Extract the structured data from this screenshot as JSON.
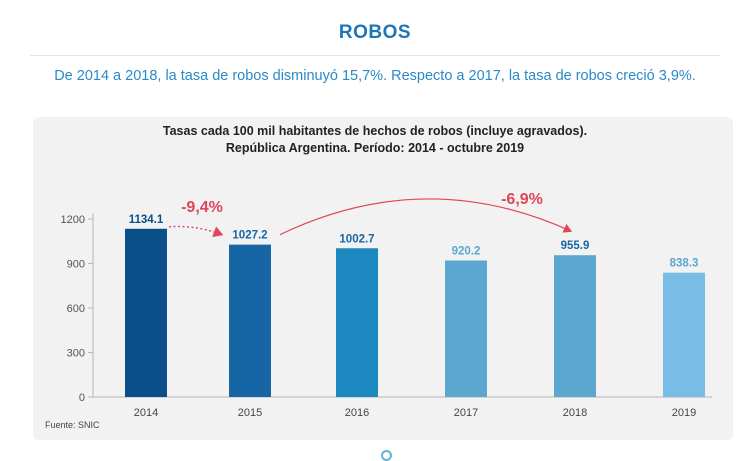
{
  "header": {
    "title": "ROBOS",
    "summary": "De 2014 a 2018, la tasa de robos disminuyó 15,7%. Respecto a 2017, la tasa de robos creció 3,9%."
  },
  "chart_data": {
    "type": "bar",
    "title_line1": "Tasas cada 100 mil habitantes de hechos de robos (incluye agravados).",
    "title_line2": "República Argentina. Período: 2014 - octubre 2019",
    "categories": [
      "2014",
      "2015",
      "2016",
      "2017",
      "2018",
      "2019"
    ],
    "values": [
      1134.1,
      1027.2,
      1002.7,
      920.2,
      955.9,
      838.3
    ],
    "value_labels": [
      "1134.1",
      "1027.2",
      "1002.7",
      "920.2",
      "955.9",
      "838.3"
    ],
    "bar_colors": [
      "#0a4f8a",
      "#1666a6",
      "#1b88c0",
      "#5ba7cf",
      "#5ba7cf",
      "#79bde6"
    ],
    "label_colors": [
      "#0a4f8a",
      "#1666a6",
      "#1666a6",
      "#5ba7cf",
      "#1666a6",
      "#5ba7cf"
    ],
    "yticks": [
      0,
      300,
      600,
      900,
      1200
    ],
    "ylim": [
      0,
      1200
    ],
    "xlabel": "",
    "ylabel": "",
    "annotations": [
      {
        "text": "-9,4%",
        "from": "2014",
        "to": "2015",
        "color": "#e0455a"
      },
      {
        "text": "-6,9%",
        "from": "2015",
        "to": "2018",
        "color": "#e0455a"
      }
    ],
    "source": "Fuente: SNIC"
  }
}
